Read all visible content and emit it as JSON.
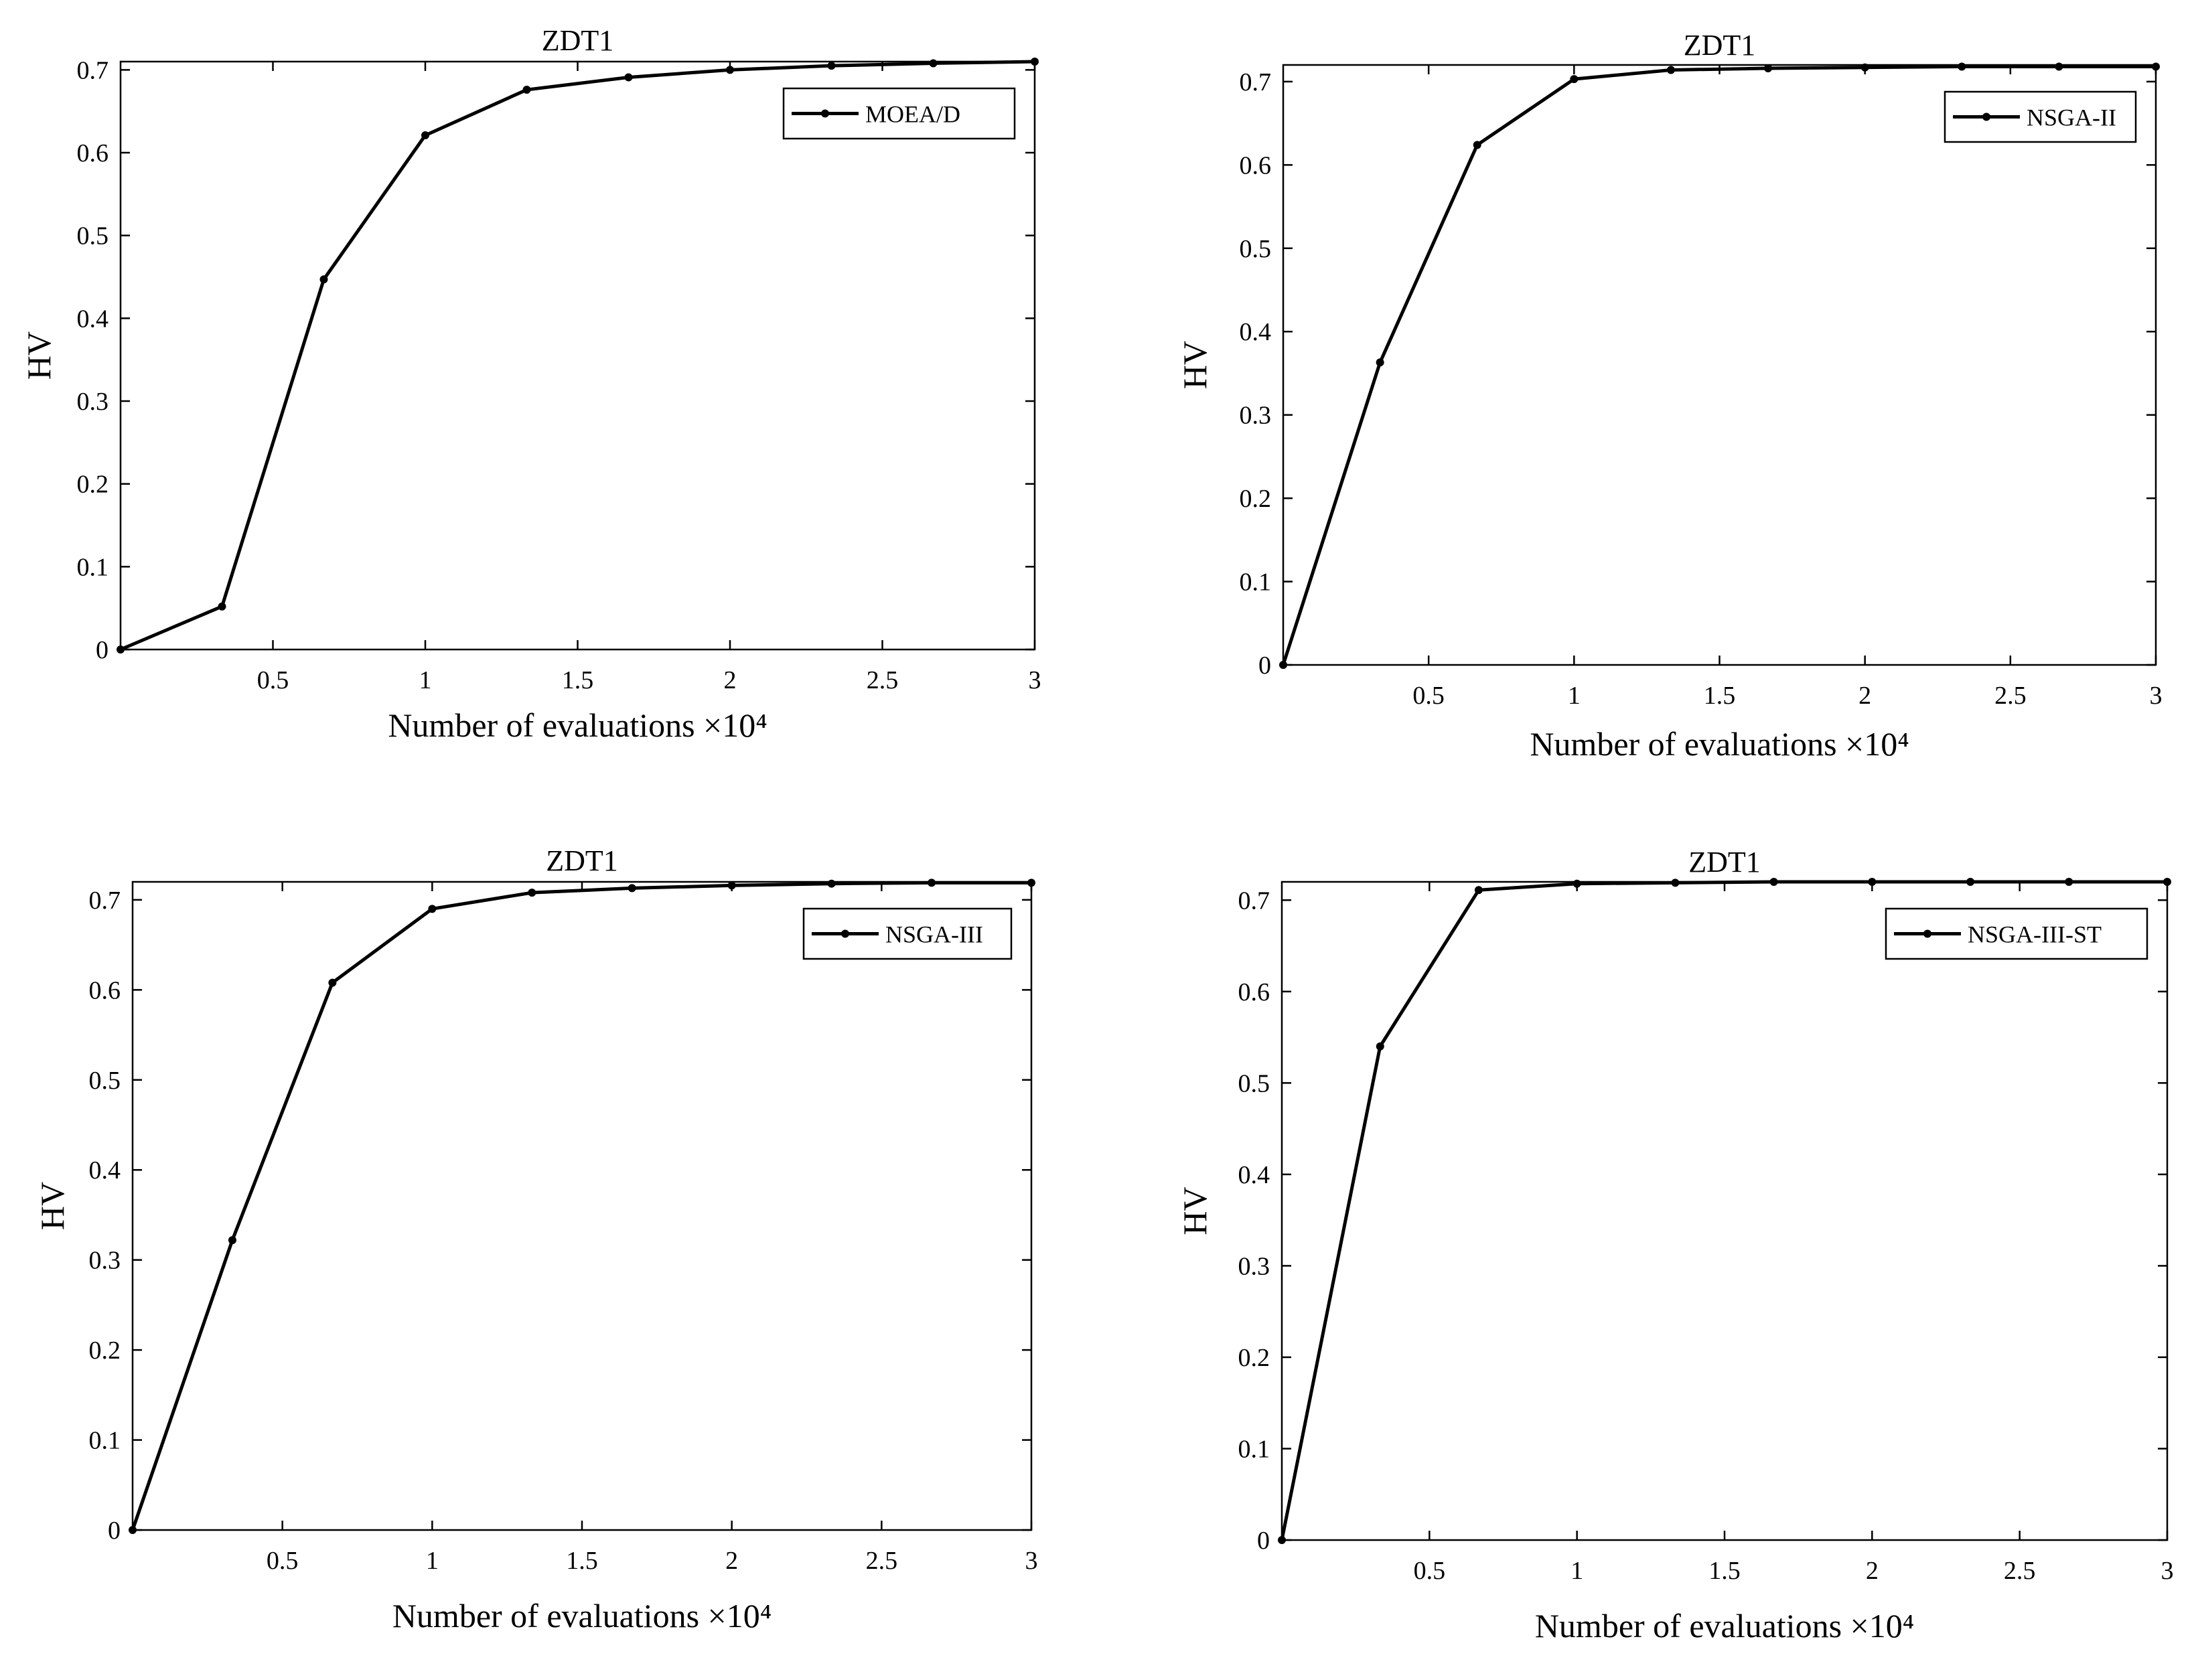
{
  "chart_data": [
    {
      "type": "line",
      "title": "ZDT1",
      "xlabel": "Number of evaluations ×10⁴",
      "ylabel": "HV",
      "xlim": [
        0,
        3
      ],
      "ylim": [
        0,
        0.71
      ],
      "xticks": [
        "0.5",
        "1",
        "1.5",
        "2",
        "2.5",
        "3"
      ],
      "yticks": [
        "0",
        "0.1",
        "0.2",
        "0.3",
        "0.4",
        "0.5",
        "0.6",
        "0.7"
      ],
      "legend_position": "top-right",
      "series": [
        {
          "name": "MOEA/D",
          "x": [
            0,
            0.333,
            0.667,
            1.0,
            1.333,
            1.667,
            2.0,
            2.333,
            2.667,
            3.0
          ],
          "y": [
            0.0,
            0.052,
            0.447,
            0.621,
            0.676,
            0.691,
            0.7,
            0.705,
            0.708,
            0.71
          ]
        }
      ]
    },
    {
      "type": "line",
      "title": "ZDT1",
      "xlabel": "Number of evaluations ×10⁴",
      "ylabel": "HV",
      "xlim": [
        0,
        3
      ],
      "ylim": [
        0,
        0.72
      ],
      "xticks": [
        "0.5",
        "1",
        "1.5",
        "2",
        "2.5",
        "3"
      ],
      "yticks": [
        "0",
        "0.1",
        "0.2",
        "0.3",
        "0.4",
        "0.5",
        "0.6",
        "0.7"
      ],
      "legend_position": "top-right",
      "series": [
        {
          "name": "NSGA-II",
          "x": [
            0,
            0.333,
            0.667,
            1.0,
            1.333,
            1.667,
            2.0,
            2.333,
            2.667,
            3.0
          ],
          "y": [
            0.0,
            0.363,
            0.624,
            0.703,
            0.714,
            0.716,
            0.717,
            0.718,
            0.718,
            0.718
          ]
        }
      ]
    },
    {
      "type": "line",
      "title": "ZDT1",
      "xlabel": "Number of evaluations ×10⁴",
      "ylabel": "HV",
      "xlim": [
        0,
        3
      ],
      "ylim": [
        0,
        0.72
      ],
      "xticks": [
        "0.5",
        "1",
        "1.5",
        "2",
        "2.5",
        "3"
      ],
      "yticks": [
        "0",
        "0.1",
        "0.2",
        "0.3",
        "0.4",
        "0.5",
        "0.6",
        "0.7"
      ],
      "legend_position": "top-right",
      "series": [
        {
          "name": "NSGA-III",
          "x": [
            0,
            0.333,
            0.667,
            1.0,
            1.333,
            1.667,
            2.0,
            2.333,
            2.667,
            3.0
          ],
          "y": [
            0.0,
            0.322,
            0.608,
            0.69,
            0.708,
            0.713,
            0.716,
            0.718,
            0.719,
            0.719
          ]
        }
      ]
    },
    {
      "type": "line",
      "title": "ZDT1",
      "xlabel": "Number of evaluations ×10⁴",
      "ylabel": "HV",
      "xlim": [
        0,
        3
      ],
      "ylim": [
        0,
        0.72
      ],
      "xticks": [
        "0.5",
        "1",
        "1.5",
        "2",
        "2.5",
        "3"
      ],
      "yticks": [
        "0",
        "0.1",
        "0.2",
        "0.3",
        "0.4",
        "0.5",
        "0.6",
        "0.7"
      ],
      "legend_position": "top-right",
      "series": [
        {
          "name": "NSGA-III-ST",
          "x": [
            0,
            0.333,
            0.667,
            1.0,
            1.333,
            1.667,
            2.0,
            2.333,
            2.667,
            3.0
          ],
          "y": [
            0.0,
            0.54,
            0.711,
            0.718,
            0.719,
            0.72,
            0.72,
            0.72,
            0.72,
            0.72
          ]
        }
      ]
    }
  ]
}
